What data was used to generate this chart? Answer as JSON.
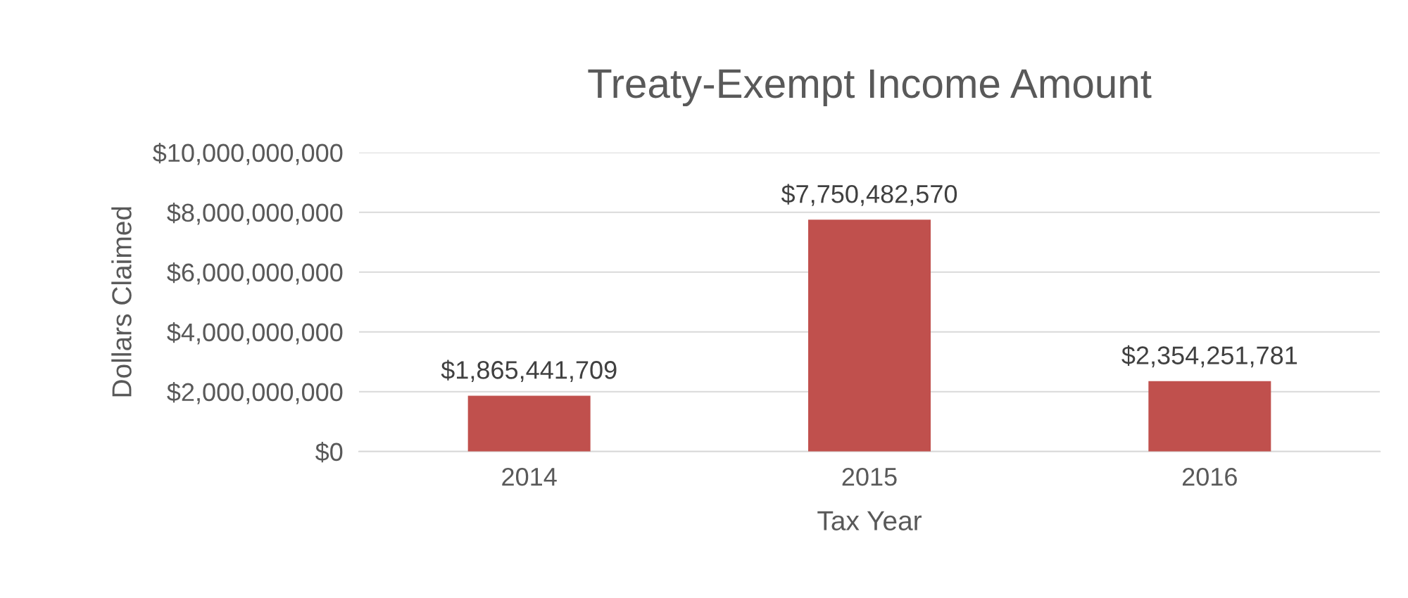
{
  "chart_data": {
    "type": "bar",
    "title": "Treaty-Exempt Income Amount",
    "xlabel": "Tax Year",
    "ylabel": "Dollars Claimed",
    "categories": [
      "2014",
      "2015",
      "2016"
    ],
    "values": [
      1865441709,
      7750482570,
      2354251781
    ],
    "value_labels": [
      "$1,865,441,709",
      "$7,750,482,570",
      "$2,354,251,781"
    ],
    "color": "#c0504d",
    "ylim": [
      0,
      10000000000
    ],
    "yticks": [
      {
        "value": 0,
        "label": "$0"
      },
      {
        "value": 2000000000,
        "label": "$2,000,000,000"
      },
      {
        "value": 4000000000,
        "label": "$4,000,000,000"
      },
      {
        "value": 6000000000,
        "label": "$6,000,000,000"
      },
      {
        "value": 8000000000,
        "label": "$8,000,000,000"
      },
      {
        "value": 10000000000,
        "label": "$10,000,000,000"
      }
    ],
    "grid": "y",
    "legend": false
  }
}
